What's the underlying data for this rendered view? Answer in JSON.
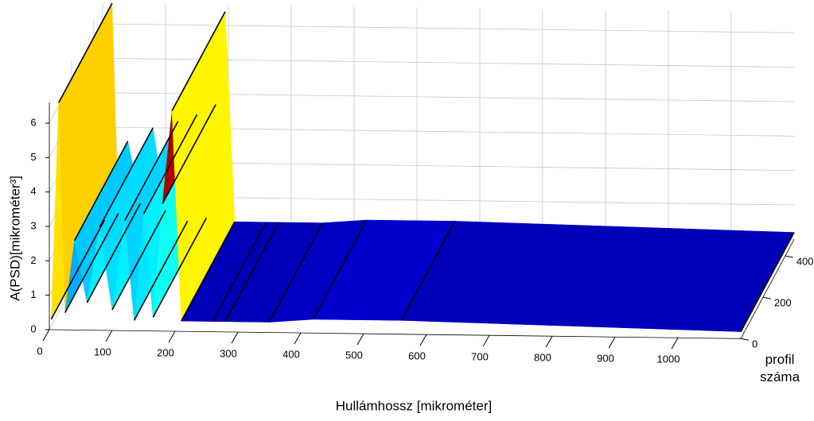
{
  "chart_data": {
    "type": "surface3d",
    "xlabel": "Hullámhossz [mikrométer]",
    "ylabel": "profil száma",
    "zlabel": "A(PSD)[mikrométer³]",
    "x": [
      3,
      15,
      25,
      40,
      60,
      80,
      100,
      120,
      135,
      150,
      165,
      180,
      195,
      210,
      260,
      280,
      350,
      420,
      560,
      1100
    ],
    "z": [
      0.3,
      6.6,
      0.5,
      2.6,
      0.8,
      3.0,
      0.6,
      3.2,
      0.3,
      3.4,
      0.4,
      3.7,
      6.4,
      0.3,
      0.3,
      0.3,
      0.3,
      0.4,
      0.4,
      0.2
    ],
    "ylim": [
      0,
      480
    ],
    "xlim": [
      0,
      1100
    ],
    "xticks": [
      0,
      100,
      200,
      300,
      400,
      500,
      600,
      700,
      800,
      900,
      1000
    ],
    "yticks": [
      0,
      200,
      400
    ],
    "zlim": [
      0,
      6.6
    ],
    "zticks": [
      0,
      1,
      2,
      3,
      4,
      5,
      6
    ],
    "colormap": "jet",
    "grid": true
  }
}
